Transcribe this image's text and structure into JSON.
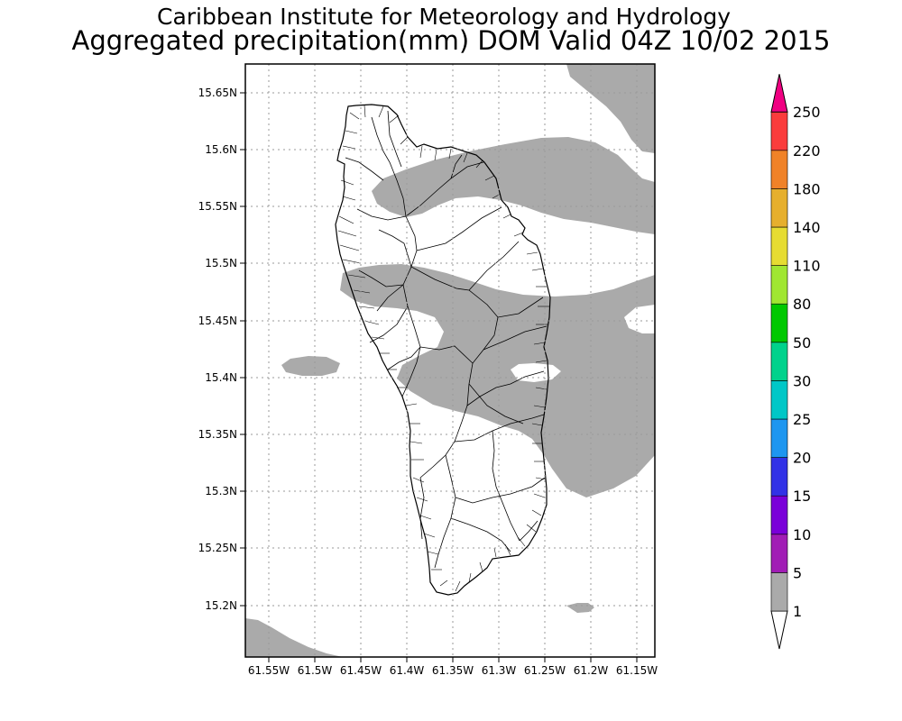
{
  "header": {
    "line1": "Caribbean Institute for Meteorology and Hydrology",
    "line2": "Aggregated precipitation(mm) DOM Valid 04Z 10/02 2015"
  },
  "map": {
    "region": "Dominica",
    "lon_range": [
      -61.58,
      -61.14
    ],
    "lat_range": [
      15.155,
      15.675
    ],
    "x_ticks": [
      "61.55W",
      "61.5W",
      "61.45W",
      "61.4W",
      "61.35W",
      "61.3W",
      "61.25W",
      "61.2W",
      "61.15W"
    ],
    "y_ticks": [
      "15.65N",
      "15.6N",
      "15.55N",
      "15.5N",
      "15.45N",
      "15.4N",
      "15.35N",
      "15.3N",
      "15.25N",
      "15.2N"
    ],
    "grid": "dotted",
    "shaded_class": "1-5",
    "shaded_color": "#aaaaaa"
  },
  "colorbar": {
    "labels": [
      "1",
      "5",
      "10",
      "15",
      "20",
      "25",
      "30",
      "50",
      "80",
      "110",
      "140",
      "180",
      "220",
      "250"
    ],
    "colors": [
      "#aaaaaa",
      "#a11db5",
      "#7a00d9",
      "#3232e6",
      "#1e96f0",
      "#00c7c7",
      "#00d28c",
      "#00c800",
      "#a0e632",
      "#e6dc32",
      "#e6af2d",
      "#f08228",
      "#fa3c3c",
      "#f00082"
    ],
    "open_low_color": "#ffffff",
    "open_high_color": "#f00082"
  }
}
